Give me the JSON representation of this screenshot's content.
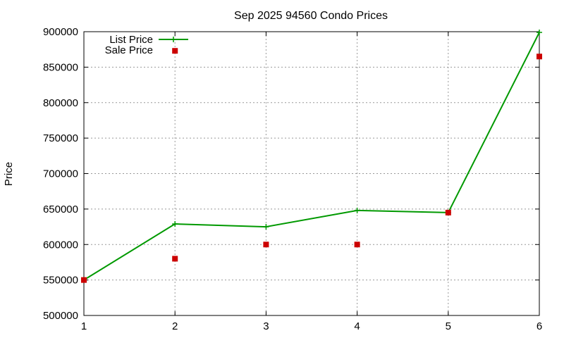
{
  "chart_data": {
    "type": "line",
    "title": "Sep 2025 94560 Condo Prices",
    "xlabel": "",
    "ylabel": "Price",
    "x": [
      1,
      2,
      3,
      4,
      5,
      6
    ],
    "xlim": [
      1,
      6
    ],
    "ylim": [
      500000,
      900000
    ],
    "x_ticks": [
      "1",
      "2",
      "3",
      "4",
      "5",
      "6"
    ],
    "y_ticks": [
      "500000",
      "550000",
      "600000",
      "650000",
      "700000",
      "750000",
      "800000",
      "850000",
      "900000"
    ],
    "grid": true,
    "legend_position": "top-left",
    "series": [
      {
        "name": "List Price",
        "style": "line-with-plus-markers",
        "color": "#009900",
        "values": [
          550000,
          629000,
          625000,
          648000,
          645000,
          899000
        ]
      },
      {
        "name": "Sale Price",
        "style": "square-markers",
        "color": "#cc0000",
        "values": [
          550000,
          580000,
          600000,
          600000,
          645000,
          865000
        ],
        "x": [
          1,
          2,
          3,
          4,
          5,
          6
        ]
      }
    ],
    "legend_extra_points": [
      {
        "series": "Sale Price",
        "x": 2,
        "y": 873000
      }
    ]
  }
}
